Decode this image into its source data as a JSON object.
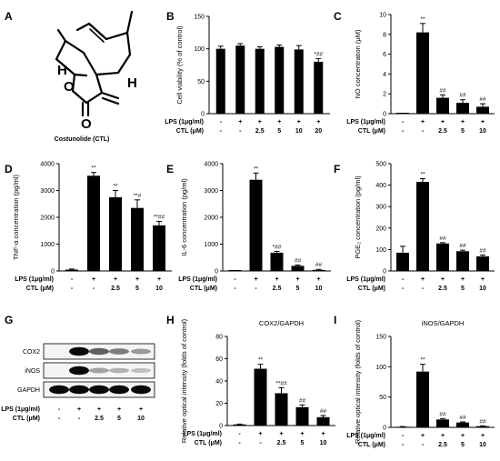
{
  "panel_letters": [
    "A",
    "B",
    "C",
    "D",
    "E",
    "F",
    "G",
    "H",
    "I"
  ],
  "molecule": {
    "caption": "Costunolide (CTL)",
    "atom_o1": "O",
    "atom_o2": "O",
    "atom_h1": "H",
    "atom_h2": "H"
  },
  "conditions": {
    "lps_label": "LPS (1μg/ml)",
    "ctl_label": "CTL (μM)",
    "lps_six": [
      "-",
      "+",
      "+",
      "+",
      "+",
      "+"
    ],
    "ctl_six": [
      "-",
      "-",
      "2.5",
      "5",
      "10",
      "20"
    ],
    "lps_five": [
      "-",
      "+",
      "+",
      "+",
      "+"
    ],
    "ctl_five": [
      "-",
      "-",
      "2.5",
      "5",
      "10"
    ]
  },
  "western_blot": {
    "bands": [
      "COX2",
      "iNOS",
      "GAPDH"
    ],
    "intensity": {
      "COX2": [
        0,
        1,
        0.55,
        0.4,
        0.25
      ],
      "iNOS": [
        0,
        1,
        0.2,
        0.12,
        0.05
      ],
      "GAPDH": [
        1,
        1,
        1,
        1,
        1
      ]
    }
  },
  "chart_data": [
    {
      "panel": "B",
      "type": "bar",
      "categories": [
        "1",
        "2",
        "3",
        "4",
        "5",
        "6"
      ],
      "values": [
        100,
        105,
        100,
        103,
        99,
        80
      ],
      "errors": [
        4,
        3,
        3,
        3,
        6,
        5
      ],
      "significance": [
        "",
        "",
        "",
        "",
        "",
        "*##"
      ],
      "ylabel": "Cell viability (% of control)",
      "ylim": [
        0,
        150
      ],
      "yticks": [
        0,
        50,
        100,
        150
      ]
    },
    {
      "panel": "C",
      "type": "bar",
      "categories": [
        "1",
        "2",
        "3",
        "4",
        "5"
      ],
      "values": [
        0,
        8.2,
        1.6,
        1.1,
        0.7
      ],
      "errors": [
        0,
        0.9,
        0.3,
        0.3,
        0.3
      ],
      "significance": [
        "",
        "**",
        "##",
        "##",
        "##"
      ],
      "ylabel": "NO concentration (μM)",
      "ylim": [
        0,
        10
      ],
      "yticks": [
        0,
        2,
        4,
        6,
        8,
        10
      ]
    },
    {
      "panel": "D",
      "type": "bar",
      "categories": [
        "1",
        "2",
        "3",
        "4",
        "5"
      ],
      "values": [
        50,
        3550,
        2750,
        2350,
        1700
      ],
      "errors": [
        20,
        120,
        250,
        300,
        150
      ],
      "significance": [
        "",
        "**",
        "**",
        "**#",
        "**##"
      ],
      "ylabel": "TNF-α concentration (pg/ml)",
      "ylim": [
        0,
        4000
      ],
      "yticks": [
        0,
        1000,
        2000,
        3000,
        4000
      ]
    },
    {
      "panel": "E",
      "type": "bar",
      "categories": [
        "1",
        "2",
        "3",
        "4",
        "5"
      ],
      "values": [
        0,
        3400,
        680,
        190,
        40
      ],
      "errors": [
        0,
        250,
        50,
        30,
        20
      ],
      "significance": [
        "",
        "**",
        "*##",
        "##",
        "##"
      ],
      "ylabel": "IL-6 concentration (pg/ml)",
      "ylim": [
        0,
        4000
      ],
      "yticks": [
        0,
        1000,
        2000,
        3000,
        4000
      ]
    },
    {
      "panel": "F",
      "type": "bar",
      "categories": [
        "1",
        "2",
        "3",
        "4",
        "5"
      ],
      "values": [
        85,
        415,
        128,
        92,
        68
      ],
      "errors": [
        30,
        15,
        4,
        5,
        6
      ],
      "significance": [
        "",
        "**",
        "##",
        "##",
        "##"
      ],
      "ylabel": "PGE₂ concentration (pg/ml)",
      "ylim": [
        0,
        500
      ],
      "yticks": [
        0,
        100,
        200,
        300,
        400,
        500
      ]
    },
    {
      "panel": "H",
      "type": "bar",
      "title": "COX2/GAPDH",
      "categories": [
        "1",
        "2",
        "3",
        "4",
        "5"
      ],
      "values": [
        1,
        51,
        29,
        16.5,
        7.5
      ],
      "errors": [
        0.3,
        4,
        5,
        2,
        1.5
      ],
      "significance": [
        "",
        "**",
        "**##",
        "##",
        "##"
      ],
      "ylabel": "Relative optical intensity (folds of control)",
      "ylim": [
        0,
        80
      ],
      "yticks": [
        0,
        20,
        40,
        60,
        80
      ]
    },
    {
      "panel": "I",
      "type": "bar",
      "title": "iNOS/GAPDH",
      "categories": [
        "1",
        "2",
        "3",
        "4",
        "5"
      ],
      "values": [
        1,
        92,
        13,
        8,
        2
      ],
      "errors": [
        0.3,
        12,
        1.5,
        1,
        0.5
      ],
      "significance": [
        "",
        "**",
        "##",
        "##",
        "##"
      ],
      "ylabel": "Relative optical intensity (folds of control)",
      "ylim": [
        0,
        150
      ],
      "yticks": [
        0,
        50,
        100,
        150
      ]
    }
  ]
}
